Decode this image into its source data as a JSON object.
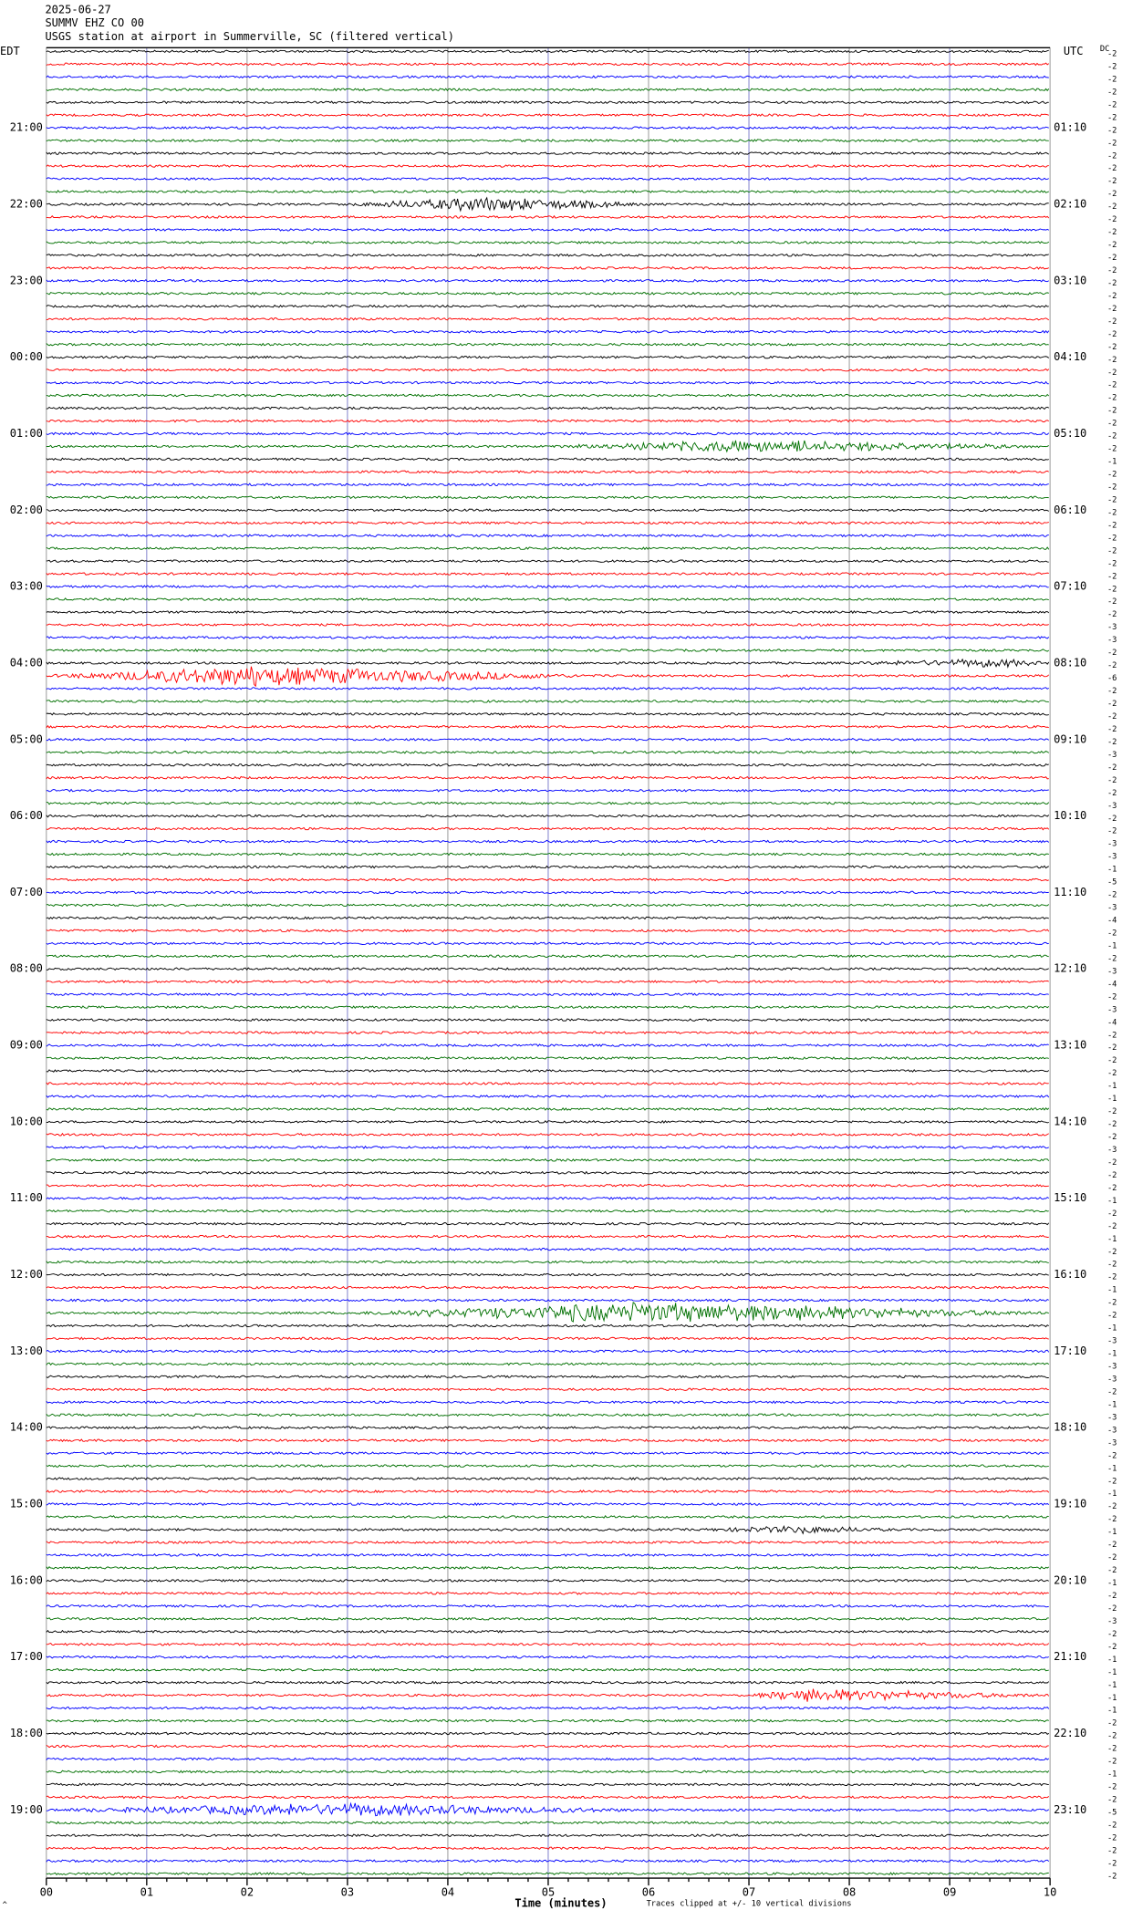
{
  "chart_data": {
    "type": "helicorder",
    "date": "2025-06-27",
    "station": "SUMMV EHZ CO 00",
    "title": "USGS station at airport in Summerville, SC (filtered vertical)",
    "left_zone": "EDT",
    "right_zone": "UTC",
    "dc_label": "DC",
    "xlabel": "Time (minutes)",
    "footnote": "Traces clipped at +/- 10 vertical divisions",
    "corner_mark": "^",
    "xlim": [
      0,
      10
    ],
    "xticks": [
      {
        "value": 0,
        "label": "00"
      },
      {
        "value": 1,
        "label": "01"
      },
      {
        "value": 2,
        "label": "02"
      },
      {
        "value": 3,
        "label": "03"
      },
      {
        "value": 4,
        "label": "04"
      },
      {
        "value": 5,
        "label": "05"
      },
      {
        "value": 6,
        "label": "06"
      },
      {
        "value": 7,
        "label": "07"
      },
      {
        "value": 8,
        "label": "08"
      },
      {
        "value": 9,
        "label": "09"
      },
      {
        "value": 10,
        "label": "10"
      }
    ],
    "grid": true,
    "row_colors": [
      "#000000",
      "#ff0000",
      "#0000ff",
      "#007000"
    ],
    "rows_per_hour": 6,
    "hours_edt": [
      null,
      "21:00",
      "22:00",
      "23:00",
      "00:00",
      "01:00",
      "02:00",
      "03:00",
      "04:00",
      "05:00",
      "06:00",
      "07:00",
      "08:00",
      "09:00",
      "10:00",
      "11:00",
      "12:00",
      "13:00",
      "14:00",
      "15:00",
      "16:00",
      "17:00",
      "18:00",
      "19:00"
    ],
    "hours_utc": [
      null,
      "01:10",
      "02:10",
      "03:10",
      "04:10",
      "05:10",
      "06:10",
      "07:10",
      "08:10",
      "09:10",
      "10:10",
      "11:10",
      "12:10",
      "13:10",
      "14:10",
      "15:10",
      "16:10",
      "17:10",
      "18:10",
      "19:10",
      "20:10",
      "21:10",
      "22:10",
      "23:10"
    ],
    "dc_offsets": [
      -2,
      -2,
      -2,
      -2,
      -2,
      -2,
      -2,
      -2,
      -2,
      -2,
      -2,
      -2,
      -2,
      -2,
      -2,
      -2,
      -2,
      -2,
      -2,
      -2,
      -2,
      -2,
      -2,
      -2,
      -2,
      -2,
      -2,
      -2,
      -2,
      -2,
      -2,
      -2,
      -1,
      -2,
      -2,
      -2,
      -2,
      -2,
      -2,
      -2,
      -2,
      -2,
      -2,
      -2,
      -2,
      -3,
      -3,
      -2,
      -2,
      -6,
      -2,
      -2,
      -2,
      -2,
      -2,
      -3,
      -2,
      -2,
      -2,
      -3,
      -2,
      -2,
      -3,
      -3,
      -1,
      -5,
      -2,
      -3,
      -4,
      -2,
      -1,
      -2,
      -3,
      -4,
      -2,
      -3,
      -4,
      -2,
      -2,
      -2,
      -2,
      -1,
      -1,
      -2,
      -2,
      -2,
      -3,
      -2,
      -2,
      -2,
      -1,
      -2,
      -2,
      -1,
      -2,
      -2,
      -2,
      -1,
      -2,
      -2,
      -1,
      -3,
      -1,
      -3,
      -3,
      -2,
      -1,
      -3,
      -3,
      -3,
      -2,
      -1,
      -2,
      -1,
      -2,
      -2,
      -1,
      -2,
      -2,
      -2,
      -1,
      -2,
      -2,
      -3,
      -2,
      -2,
      -1,
      -1,
      -1,
      -1,
      -1,
      -2,
      -2,
      -2,
      -2,
      -1,
      -2,
      -2,
      -5,
      -2,
      -2,
      -2,
      -2,
      -2
    ],
    "events": [
      {
        "row": 12,
        "start": 3.0,
        "peak": 4.4,
        "end": 6.0,
        "peak_amplitude": 0.6
      },
      {
        "row": 31,
        "start": 5.0,
        "peak": 7.0,
        "end": 10,
        "peak_amplitude": 0.5
      },
      {
        "row": 48,
        "start": 8.0,
        "peak": 9.5,
        "end": 10,
        "peak_amplitude": 0.3
      },
      {
        "row": 49,
        "start": 0,
        "peak": 2.0,
        "end": 5.5,
        "peak_amplitude": 0.8
      },
      {
        "row": 99,
        "start": 3.0,
        "peak": 6.0,
        "end": 10,
        "peak_amplitude": 0.9
      },
      {
        "row": 116,
        "start": 6.5,
        "peak": 7.5,
        "end": 8.5,
        "peak_amplitude": 0.25
      },
      {
        "row": 129,
        "start": 7.0,
        "peak": 7.5,
        "end": 10,
        "peak_amplitude": 0.5
      },
      {
        "row": 138,
        "start": 0,
        "peak": 3.0,
        "end": 6.0,
        "peak_amplitude": 0.5
      }
    ]
  }
}
